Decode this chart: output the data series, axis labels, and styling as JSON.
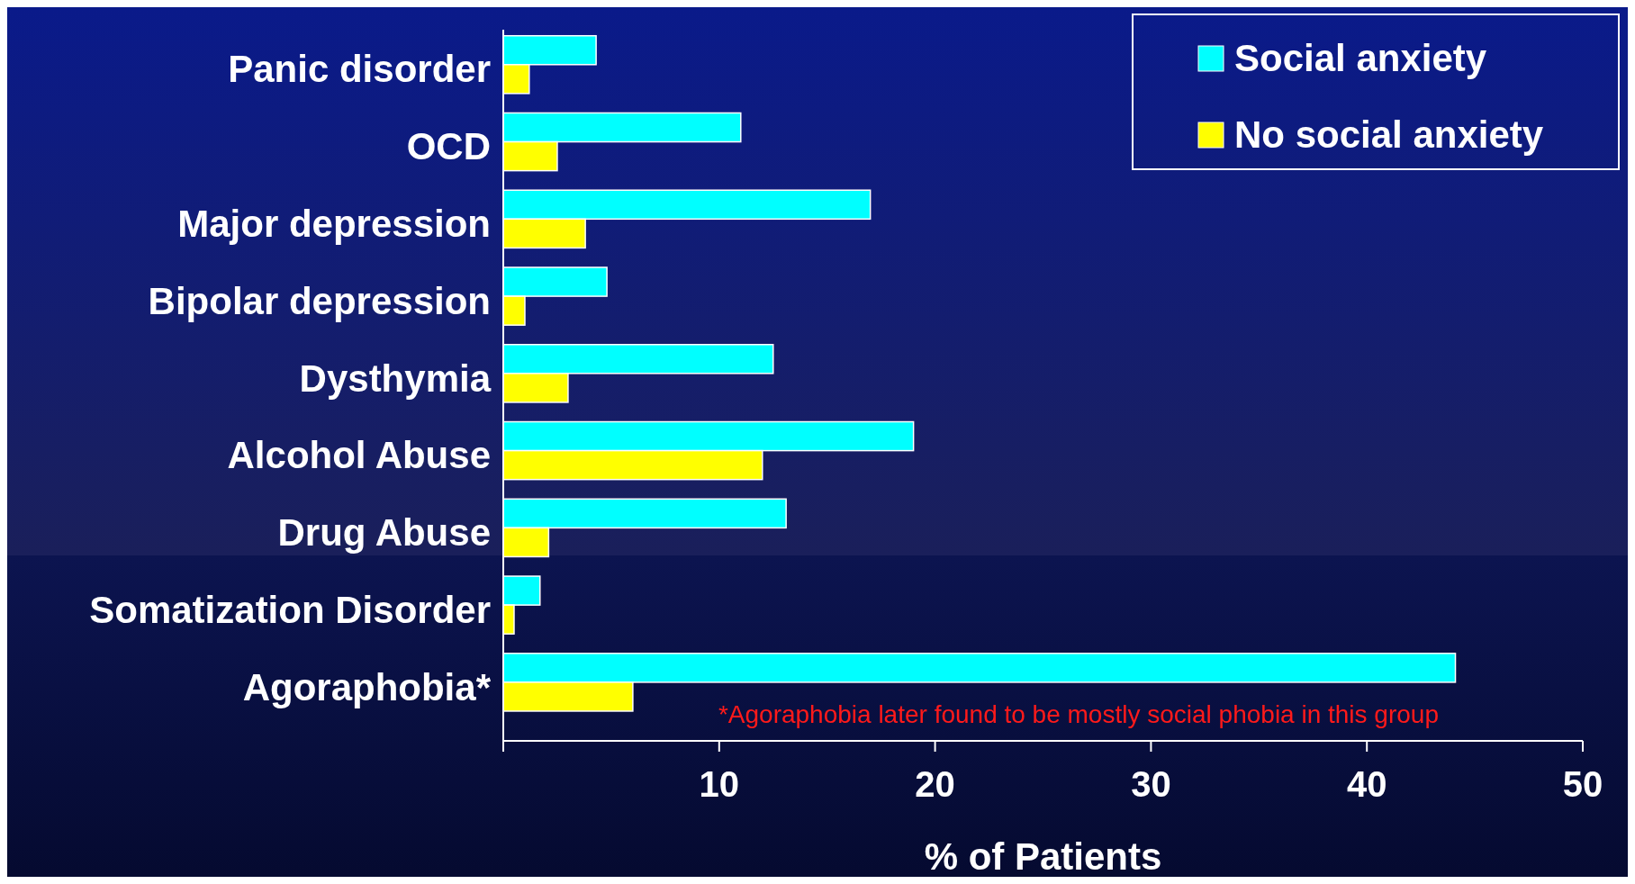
{
  "chart_data": {
    "type": "bar",
    "orientation": "horizontal",
    "xlabel": "% of Patients",
    "categories": [
      "Panic disorder",
      "OCD",
      "Major depression",
      "Bipolar depression",
      "Dysthymia",
      "Alcohol Abuse",
      "Drug Abuse",
      "Somatization Disorder",
      "Agoraphobia*"
    ],
    "series": [
      {
        "name": "Social anxiety",
        "color": "#00ffff",
        "values": [
          4.3,
          11,
          17,
          4.8,
          12.5,
          19,
          13.1,
          1.7,
          44.1
        ]
      },
      {
        "name": "No social anxiety",
        "color": "#ffff00",
        "values": [
          1.2,
          2.5,
          3.8,
          1,
          3,
          12,
          2.1,
          0.5,
          6
        ]
      }
    ],
    "xlim": [
      0,
      50
    ],
    "xticks": [
      {
        "value": 0,
        "label": null
      },
      10,
      20,
      30,
      40,
      50
    ],
    "legend": "top right",
    "annotations": [
      "*Agoraphobia later found to be mostly social phobia in this group"
    ]
  }
}
